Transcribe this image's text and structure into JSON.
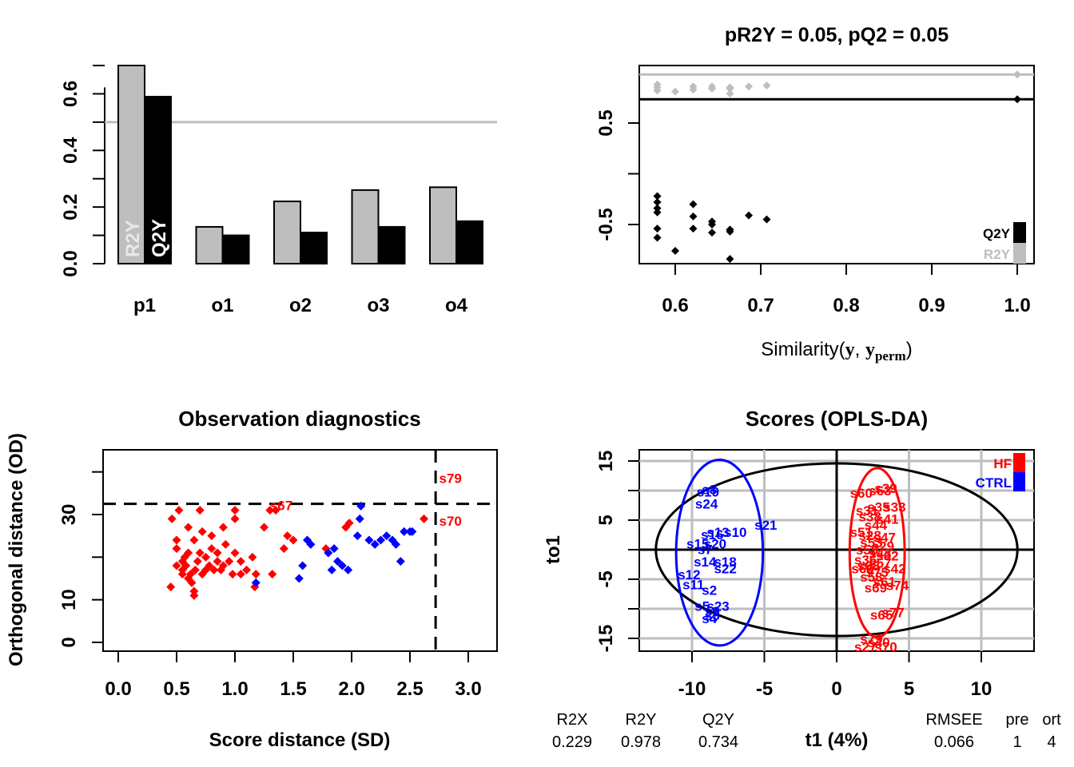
{
  "chart_data": [
    {
      "type": "bar",
      "title": "",
      "categories": [
        "p1",
        "o1",
        "o2",
        "o3",
        "o4"
      ],
      "series": [
        {
          "name": "R2Y",
          "color": "#bebebe",
          "values": [
            0.7,
            0.13,
            0.22,
            0.26,
            0.27
          ]
        },
        {
          "name": "Q2Y",
          "color": "#000000",
          "values": [
            0.59,
            0.1,
            0.11,
            0.13,
            0.15
          ]
        }
      ],
      "ylim": [
        0,
        0.7
      ],
      "yticks": [
        "0.0",
        "0.2",
        "0.4",
        "0.6"
      ],
      "yticks_values": [
        0,
        0.2,
        0.4,
        0.6
      ],
      "hline": 0.5,
      "hline_color": "#bebebe",
      "bar_text": [
        "R2Y",
        "Q2Y"
      ]
    },
    {
      "type": "scatter",
      "title": "pR2Y = 0.05, pQ2 = 0.05",
      "xlabel_main": "Similarity(",
      "xlabel_y": "y",
      "xlabel_sep": ", ",
      "xlabel_yperm": "y",
      "xlabel_sub": "perm",
      "xlabel_close": ")",
      "xlim": [
        0.57,
        1.01
      ],
      "xticks": [
        "0.6",
        "0.7",
        "0.8",
        "0.9",
        "1.0"
      ],
      "xticks_values": [
        0.6,
        0.7,
        0.8,
        0.9,
        1.0
      ],
      "yticks": [
        "-0.5",
        "0.5"
      ],
      "yticks_values": [
        -0.5,
        0.5
      ],
      "minor_yticks": [
        0.0
      ],
      "hlines": [
        {
          "y": 0.978,
          "color": "#bebebe"
        },
        {
          "y": 0.734,
          "color": "#000000"
        }
      ],
      "series": [
        {
          "name": "R2Y",
          "color": "#bebebe",
          "points": [
            [
              0.579,
              0.88
            ],
            [
              0.579,
              0.85
            ],
            [
              0.579,
              0.82
            ],
            [
              0.6,
              0.81
            ],
            [
              0.621,
              0.86
            ],
            [
              0.621,
              0.83
            ],
            [
              0.643,
              0.86
            ],
            [
              0.643,
              0.84
            ],
            [
              0.664,
              0.85
            ],
            [
              0.664,
              0.84
            ],
            [
              0.664,
              0.79
            ],
            [
              0.686,
              0.86
            ],
            [
              0.707,
              0.87
            ],
            [
              1.0,
              0.978
            ]
          ]
        },
        {
          "name": "Q2Y",
          "color": "#000000",
          "points": [
            [
              0.579,
              -0.22
            ],
            [
              0.579,
              -0.28
            ],
            [
              0.579,
              -0.34
            ],
            [
              0.579,
              -0.38
            ],
            [
              0.579,
              -0.54
            ],
            [
              0.579,
              -0.63
            ],
            [
              0.6,
              -0.76
            ],
            [
              0.621,
              -0.3
            ],
            [
              0.621,
              -0.42
            ],
            [
              0.621,
              -0.54
            ],
            [
              0.643,
              -0.47
            ],
            [
              0.643,
              -0.5
            ],
            [
              0.643,
              -0.58
            ],
            [
              0.664,
              -0.55
            ],
            [
              0.664,
              -0.57
            ],
            [
              0.664,
              -0.84
            ],
            [
              0.686,
              -0.41
            ],
            [
              0.707,
              -0.45
            ],
            [
              1.0,
              0.734
            ]
          ]
        }
      ],
      "legend": [
        "Q2Y",
        "R2Y"
      ],
      "legend_colors": [
        "#000000",
        "#bebebe"
      ],
      "legend_position": "bottom-right"
    },
    {
      "type": "scatter",
      "title": "Observation diagnostics",
      "xlabel": "Score distance (SD)",
      "ylabel": "Orthogonal distance (OD)",
      "xlim": [
        -0.13,
        3.23
      ],
      "ylim": [
        -1.3,
        44
      ],
      "xticks": [
        "0.0",
        "0.5",
        "1.0",
        "1.5",
        "2.0",
        "2.5",
        "3.0"
      ],
      "xticks_values": [
        0,
        0.5,
        1,
        1.5,
        2,
        2.5,
        3
      ],
      "yticks": [
        "0",
        "10",
        "30"
      ],
      "yticks_values": [
        0,
        10,
        30
      ],
      "minor_yticks": [
        20,
        40
      ],
      "vline": 2.72,
      "hline": 32.5,
      "series": [
        {
          "name": "HF",
          "color": "#ff0000",
          "points": [
            [
              0.45,
              13
            ],
            [
              0.46,
              29
            ],
            [
              0.5,
              18
            ],
            [
              0.5,
              24
            ],
            [
              0.5,
              22
            ],
            [
              0.52,
              31
            ],
            [
              0.55,
              16
            ],
            [
              0.55,
              19
            ],
            [
              0.55,
              17
            ],
            [
              0.57,
              20
            ],
            [
              0.58,
              18
            ],
            [
              0.6,
              27
            ],
            [
              0.6,
              15
            ],
            [
              0.6,
              21
            ],
            [
              0.62,
              16
            ],
            [
              0.63,
              14
            ],
            [
              0.65,
              12
            ],
            [
              0.65,
              11
            ],
            [
              0.65,
              24
            ],
            [
              0.66,
              17
            ],
            [
              0.68,
              19
            ],
            [
              0.7,
              31
            ],
            [
              0.7,
              21
            ],
            [
              0.72,
              26
            ],
            [
              0.72,
              16
            ],
            [
              0.75,
              17
            ],
            [
              0.75,
              20
            ],
            [
              0.78,
              18
            ],
            [
              0.8,
              25
            ],
            [
              0.8,
              22
            ],
            [
              0.82,
              17
            ],
            [
              0.85,
              19
            ],
            [
              0.85,
              21
            ],
            [
              0.88,
              17
            ],
            [
              0.9,
              18
            ],
            [
              0.9,
              27
            ],
            [
              0.92,
              23
            ],
            [
              0.95,
              19
            ],
            [
              0.98,
              16
            ],
            [
              1.0,
              21
            ],
            [
              1.0,
              29
            ],
            [
              1.0,
              31
            ],
            [
              1.05,
              19
            ],
            [
              1.05,
              16
            ],
            [
              1.1,
              17
            ],
            [
              1.15,
              20
            ],
            [
              1.17,
              13
            ],
            [
              1.18,
              16
            ],
            [
              1.25,
              27
            ],
            [
              1.3,
              31
            ],
            [
              1.32,
              16
            ],
            [
              1.35,
              31
            ],
            [
              1.42,
              22
            ],
            [
              1.45,
              25
            ],
            [
              1.5,
              24
            ],
            [
              1.78,
              22
            ],
            [
              1.95,
              27
            ],
            [
              1.98,
              28
            ],
            [
              2.62,
              29
            ]
          ]
        },
        {
          "name": "CTRL",
          "color": "#0000ff",
          "points": [
            [
              1.18,
              14
            ],
            [
              1.55,
              15
            ],
            [
              1.58,
              18
            ],
            [
              1.62,
              24
            ],
            [
              1.65,
              23
            ],
            [
              1.8,
              21
            ],
            [
              1.83,
              17
            ],
            [
              1.85,
              22
            ],
            [
              1.88,
              19
            ],
            [
              1.92,
              18
            ],
            [
              1.97,
              17
            ],
            [
              2.05,
              25
            ],
            [
              2.07,
              29
            ],
            [
              2.08,
              32
            ],
            [
              2.15,
              24
            ],
            [
              2.2,
              23
            ],
            [
              2.25,
              24
            ],
            [
              2.3,
              25
            ],
            [
              2.35,
              24
            ],
            [
              2.38,
              23
            ],
            [
              2.42,
              19
            ],
            [
              2.45,
              26
            ],
            [
              2.5,
              26
            ],
            [
              2.52,
              26
            ]
          ]
        }
      ],
      "labels": [
        {
          "text": "s67",
          "x": 1.3,
          "y": 32.2,
          "color": "#ff0000"
        },
        {
          "text": "s79",
          "x": 2.75,
          "y": 38.5,
          "color": "#ff0000"
        },
        {
          "text": "s70",
          "x": 2.75,
          "y": 28.5,
          "color": "#ff0000"
        }
      ]
    },
    {
      "type": "scatter",
      "title": "Scores (OPLS-DA)",
      "xlabel": "t1 (4%)",
      "ylabel": "to1",
      "xlim": [
        -13.9,
        13.7
      ],
      "ylim": [
        -17,
        18
      ],
      "xticks": [
        "-10",
        "-5",
        "0",
        "5",
        "10"
      ],
      "xticks_values": [
        -10,
        -5,
        0,
        5,
        10
      ],
      "yticks": [
        "-15",
        "-5",
        "5",
        "15"
      ],
      "yticks_values": [
        -15,
        -5,
        5,
        15
      ],
      "minor_yticks": [
        -10,
        0,
        10
      ],
      "grid": true,
      "legend": [
        "HF",
        "CTRL"
      ],
      "legend_colors": [
        "#ff0000",
        "#0000ff"
      ],
      "legend_position": "top-right",
      "ellipses": [
        {
          "cx": 0,
          "cy": 0,
          "rx": 12.5,
          "ry": 14.6,
          "color": "#000000"
        },
        {
          "cx": -8.1,
          "cy": -0.5,
          "rx": 3.0,
          "ry": 15.7,
          "color": "#0000ff"
        },
        {
          "cx": 2.8,
          "cy": -0.5,
          "rx": 1.9,
          "ry": 14.3,
          "color": "#ff0000"
        }
      ],
      "series": [
        {
          "name": "CTRL",
          "color": "#0000ff",
          "points": [
            {
              "label": "s8",
              "x": -8.8,
              "y": 10.2
            },
            {
              "label": "s19",
              "x": -8.9,
              "y": 9.8
            },
            {
              "label": "s24",
              "x": -9.0,
              "y": 7.8
            },
            {
              "label": "s21",
              "x": -4.9,
              "y": 4.2
            },
            {
              "label": "s13",
              "x": -8.2,
              "y": 3.0
            },
            {
              "label": "s10",
              "x": -7.0,
              "y": 3.0
            },
            {
              "label": "s16",
              "x": -8.6,
              "y": 2.6
            },
            {
              "label": "s20",
              "x": -8.4,
              "y": 1.0
            },
            {
              "label": "s15",
              "x": -9.6,
              "y": 1.0
            },
            {
              "label": "s7",
              "x": -9.1,
              "y": 0.1
            },
            {
              "label": "s14",
              "x": -9.1,
              "y": -2.0
            },
            {
              "label": "s18",
              "x": -7.7,
              "y": -2.0
            },
            {
              "label": "s22",
              "x": -7.7,
              "y": -3.2
            },
            {
              "label": "s12",
              "x": -10.2,
              "y": -4.2
            },
            {
              "label": "s11",
              "x": -9.9,
              "y": -5.9
            },
            {
              "label": "s2",
              "x": -8.8,
              "y": -6.8
            },
            {
              "label": "s5",
              "x": -9.3,
              "y": -9.5
            },
            {
              "label": "s23",
              "x": -8.2,
              "y": -9.5
            },
            {
              "label": "s9",
              "x": -8.6,
              "y": -10.4
            },
            {
              "label": "s3",
              "x": -8.6,
              "y": -11.1
            },
            {
              "label": "s4",
              "x": -8.8,
              "y": -11.6
            }
          ]
        },
        {
          "name": "HF",
          "color": "#ff0000",
          "points": [
            {
              "label": "s60",
              "x": 1.7,
              "y": 9.6
            },
            {
              "label": "s39",
              "x": 3.4,
              "y": 10.4
            },
            {
              "label": "s63",
              "x": 3.0,
              "y": 10.0
            },
            {
              "label": "s35",
              "x": 2.9,
              "y": 7.2
            },
            {
              "label": "s33",
              "x": 4.0,
              "y": 7.2
            },
            {
              "label": "s31",
              "x": 2.1,
              "y": 6.6
            },
            {
              "label": "s38",
              "x": 2.3,
              "y": 5.6
            },
            {
              "label": "s41",
              "x": 3.5,
              "y": 5.2
            },
            {
              "label": "s44",
              "x": 2.7,
              "y": 4.2
            },
            {
              "label": "s51",
              "x": 1.7,
              "y": 3.0
            },
            {
              "label": "s28",
              "x": 2.3,
              "y": 2.4
            },
            {
              "label": "s47",
              "x": 3.3,
              "y": 2.1
            },
            {
              "label": "s53",
              "x": 2.4,
              "y": 1.2
            },
            {
              "label": "s29",
              "x": 3.2,
              "y": 0.6
            },
            {
              "label": "s55",
              "x": 2.1,
              "y": 0.0
            },
            {
              "label": "s43",
              "x": 3.0,
              "y": -0.6
            },
            {
              "label": "s62",
              "x": 3.5,
              "y": -1.0
            },
            {
              "label": "s36",
              "x": 2.0,
              "y": -1.7
            },
            {
              "label": "s57",
              "x": 3.0,
              "y": -2.2
            },
            {
              "label": "s68",
              "x": 2.2,
              "y": -2.7
            },
            {
              "label": "s66",
              "x": 1.8,
              "y": -3.2
            },
            {
              "label": "s42",
              "x": 4.0,
              "y": -3.2
            },
            {
              "label": "s75",
              "x": 2.8,
              "y": -3.8
            },
            {
              "label": "s58",
              "x": 2.4,
              "y": -4.6
            },
            {
              "label": "s61",
              "x": 3.3,
              "y": -5.4
            },
            {
              "label": "s74",
              "x": 4.2,
              "y": -6.0
            },
            {
              "label": "s69",
              "x": 2.7,
              "y": -6.4
            },
            {
              "label": "s65",
              "x": 3.1,
              "y": -11.0
            },
            {
              "label": "s77",
              "x": 3.9,
              "y": -10.6
            },
            {
              "label": "s79",
              "x": 2.4,
              "y": -15.1
            },
            {
              "label": "s40",
              "x": 2.9,
              "y": -15.7
            },
            {
              "label": "s70",
              "x": 3.4,
              "y": -16.4
            },
            {
              "label": "s27",
              "x": 2.0,
              "y": -16.4
            }
          ]
        }
      ],
      "stats": [
        {
          "label": "R2X",
          "value": "0.229"
        },
        {
          "label": "R2Y",
          "value": "0.978"
        },
        {
          "label": "Q2Y",
          "value": "0.734"
        },
        {
          "label": "RMSEE",
          "value": "0.066"
        },
        {
          "label": "pre",
          "value": "1"
        },
        {
          "label": "ort",
          "value": "4"
        }
      ]
    }
  ]
}
